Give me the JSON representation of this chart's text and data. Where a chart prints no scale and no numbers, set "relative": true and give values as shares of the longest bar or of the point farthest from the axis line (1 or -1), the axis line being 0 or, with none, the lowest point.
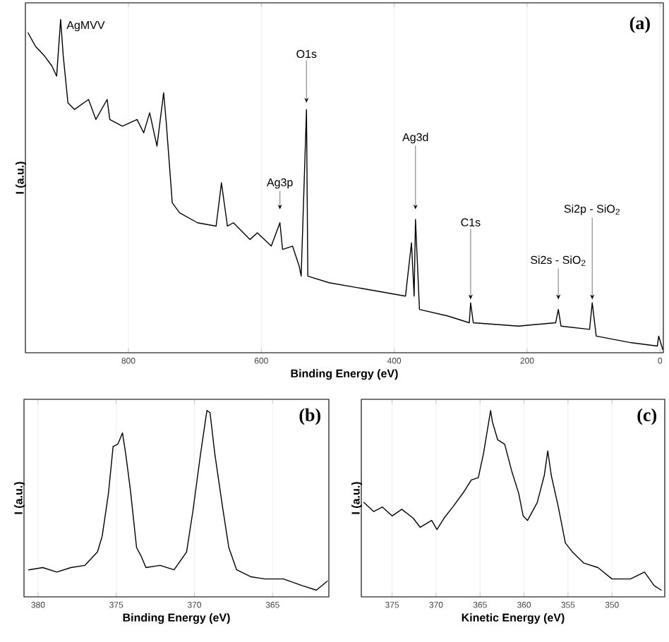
{
  "chart_data": [
    {
      "type": "line",
      "xlabel": "Binding Energy (eV)",
      "ylabel": "I (a.u.)",
      "relative": true,
      "xlim": [
        955,
        -5
      ],
      "xticks": [
        800,
        600,
        400,
        200,
        0
      ],
      "grid": "x",
      "tick_labels": "x",
      "color": "#000000",
      "x": [
        951,
        940,
        926,
        915,
        908,
        902,
        898,
        891,
        881,
        860,
        849,
        832,
        828,
        809,
        787,
        777,
        768,
        757,
        747,
        743,
        734,
        723,
        696,
        668,
        660,
        651,
        642,
        617,
        606,
        585,
        572,
        568,
        553,
        543,
        540,
        532,
        530,
        498,
        440,
        383,
        374,
        370,
        368,
        362,
        319,
        287,
        285,
        281,
        213,
        157,
        153,
        149,
        106,
        102,
        96,
        43,
        4,
        2,
        -4
      ],
      "values": [
        0.96,
        0.92,
        0.89,
        0.86,
        0.83,
        1.0,
        0.89,
        0.75,
        0.73,
        0.76,
        0.7,
        0.76,
        0.7,
        0.68,
        0.7,
        0.66,
        0.72,
        0.62,
        0.78,
        0.69,
        0.45,
        0.42,
        0.39,
        0.38,
        0.51,
        0.38,
        0.39,
        0.34,
        0.36,
        0.32,
        0.39,
        0.31,
        0.32,
        0.26,
        0.23,
        0.73,
        0.23,
        0.21,
        0.19,
        0.17,
        0.33,
        0.17,
        0.4,
        0.13,
        0.11,
        0.09,
        0.15,
        0.09,
        0.08,
        0.09,
        0.13,
        0.08,
        0.07,
        0.15,
        0.05,
        0.03,
        0.02,
        0.05,
        0.01
      ],
      "annotations": [
        "(a)",
        {
          "text": "AgMVV",
          "x": 902,
          "y": 1.0
        },
        {
          "text": "Ag3p",
          "x": 572,
          "y": 0.43
        },
        {
          "text": "O1s",
          "x": 532,
          "y": 0.75
        },
        {
          "text": "Ag3d",
          "x": 368,
          "y": 0.43
        },
        {
          "text": "C1s",
          "x": 285,
          "y": 0.16
        },
        {
          "text": "Si2s - SiO$_{2}$",
          "x": 153,
          "y": 0.16
        },
        {
          "text": "Si2p - SiO$_{2}$",
          "x": 102,
          "y": 0.16
        }
      ]
    },
    {
      "type": "line",
      "xlabel": "Binding Energy (eV)",
      "ylabel": "I (a.u.)",
      "relative": true,
      "xlim": [
        380.9,
        361.4
      ],
      "xticks": [
        380,
        375,
        370,
        365
      ],
      "grid": "x",
      "tick_labels": "x",
      "color": "#000000",
      "x": [
        380.6,
        379.7,
        378.8,
        377.9,
        377.0,
        376.2,
        375.9,
        375.5,
        375.2,
        374.9,
        374.6,
        374.4,
        374.1,
        373.7,
        373.4,
        373.1,
        372.2,
        371.3,
        370.5,
        370.1,
        369.6,
        369.2,
        369.0,
        368.7,
        368.2,
        367.8,
        367.3,
        366.4,
        365.5,
        364.3,
        363.1,
        362.2,
        361.5
      ],
      "values": [
        0.145,
        0.157,
        0.133,
        0.157,
        0.169,
        0.241,
        0.325,
        0.554,
        0.807,
        0.819,
        0.88,
        0.771,
        0.578,
        0.265,
        0.217,
        0.157,
        0.169,
        0.145,
        0.241,
        0.458,
        0.771,
        1.0,
        0.988,
        0.771,
        0.482,
        0.265,
        0.145,
        0.108,
        0.096,
        0.096,
        0.06,
        0.036,
        0.084
      ],
      "annotations": [
        "(b)"
      ]
    },
    {
      "type": "line",
      "xlabel": "Kinetic Energy (eV)",
      "ylabel": "I (a.u.)",
      "relative": true,
      "xlim": [
        378.5,
        344.0
      ],
      "xticks": [
        375,
        370,
        365,
        360,
        355,
        350
      ],
      "grid": "x",
      "tick_labels": "x",
      "color": "#000000",
      "x": [
        378.2,
        377.1,
        376.1,
        375.0,
        373.9,
        372.6,
        371.8,
        370.5,
        369.9,
        369.1,
        368.1,
        366.8,
        366.0,
        365.2,
        364.6,
        363.8,
        363.6,
        363.0,
        362.2,
        361.4,
        360.6,
        360.1,
        359.6,
        358.5,
        357.7,
        357.3,
        356.9,
        356.1,
        355.3,
        354.5,
        353.2,
        351.6,
        350.0,
        347.9,
        346.3,
        345.2,
        344.4
      ],
      "values": [
        0.506,
        0.458,
        0.482,
        0.434,
        0.47,
        0.422,
        0.373,
        0.41,
        0.361,
        0.422,
        0.482,
        0.566,
        0.627,
        0.639,
        0.771,
        1.0,
        0.94,
        0.843,
        0.819,
        0.675,
        0.554,
        0.434,
        0.41,
        0.506,
        0.651,
        0.783,
        0.651,
        0.482,
        0.289,
        0.241,
        0.181,
        0.157,
        0.096,
        0.096,
        0.133,
        0.06,
        0.036
      ],
      "annotations": [
        "(c)"
      ]
    }
  ]
}
